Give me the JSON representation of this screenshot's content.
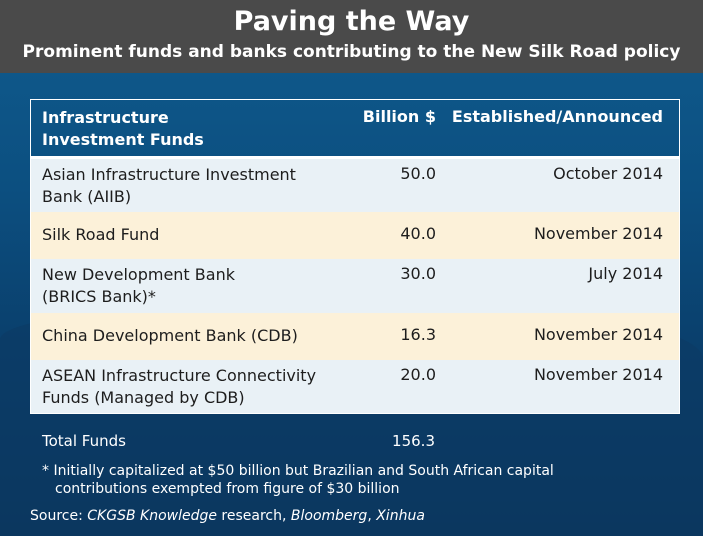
{
  "header": {
    "title": "Paving the Way",
    "subtitle": "Prominent funds and banks contributing to the New Silk Road policy"
  },
  "table": {
    "columns": {
      "name_line1": "Infrastructure",
      "name_line2": "Investment Funds",
      "amount": "Billion $",
      "date": "Established/Announced"
    },
    "rows": [
      {
        "name_line1": "Asian Infrastructure Investment",
        "name_line2": "Bank (AIIB)",
        "amount": "50.0",
        "date": "October 2014"
      },
      {
        "name_line1": "Silk Road Fund",
        "name_line2": "",
        "amount": "40.0",
        "date": "November 2014"
      },
      {
        "name_line1": "New Development Bank",
        "name_line2": "(BRICS Bank)*",
        "amount": "30.0",
        "date": "July 2014"
      },
      {
        "name_line1": "China Development Bank (CDB)",
        "name_line2": "",
        "amount": "16.3",
        "date": "November 2014"
      },
      {
        "name_line1": "ASEAN Infrastructure Connectivity",
        "name_line2": "Funds (Managed by CDB)",
        "amount": "20.0",
        "date": "November 2014"
      }
    ],
    "total_label": "Total Funds",
    "total_value": "156.3"
  },
  "footnote": {
    "line1": "* Initially capitalized at $50 billion but Brazilian and South African capital",
    "line2": "contributions exempted from figure of $30 billion"
  },
  "source": {
    "prefix": "Source: ",
    "s1": "CKGSB Knowledge",
    "mid": " research, ",
    "s2": "Bloomberg",
    "sep": ", ",
    "s3": "Xinhua"
  }
}
